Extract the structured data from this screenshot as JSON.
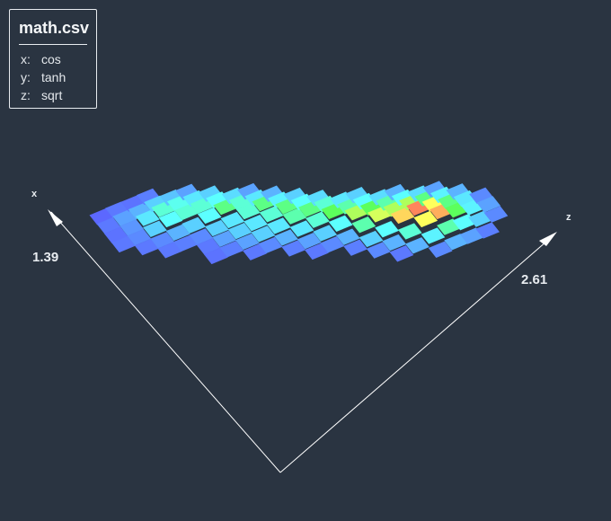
{
  "info": {
    "title": "math.csv",
    "rows": [
      {
        "key": "x:",
        "value": "cos"
      },
      {
        "key": "y:",
        "value": "tanh"
      },
      {
        "key": "z:",
        "value": "sqrt"
      }
    ]
  },
  "colors": {
    "background": "#2a3441",
    "axis": "#ffffff",
    "colormap": [
      "#5c5cff",
      "#5ad0ff",
      "#5cffff",
      "#5cff5c",
      "#ffff5c",
      "#ff5c5c"
    ]
  },
  "chart_data": {
    "type": "heatmap",
    "title": "math.csv",
    "axes": {
      "x": "cos",
      "y": "tanh",
      "z": "sqrt"
    },
    "axis_labels": {
      "x": "x",
      "z": "z"
    },
    "x_max_label": "1.39",
    "z_max_label": "2.61",
    "grid": false,
    "cells": [
      [
        0,
        0,
        0.02
      ],
      [
        0,
        1,
        0.05
      ],
      [
        0,
        2,
        0.04
      ],
      [
        0,
        3,
        0.05
      ],
      [
        1,
        0,
        0.05
      ],
      [
        1,
        1,
        0.12
      ],
      [
        1,
        2,
        0.1
      ],
      [
        1,
        3,
        0.08
      ],
      [
        1,
        4,
        0.05
      ],
      [
        2,
        0,
        0.04
      ],
      [
        2,
        1,
        0.15
      ],
      [
        2,
        2,
        0.3
      ],
      [
        2,
        3,
        0.2
      ],
      [
        2,
        4,
        0.08
      ],
      [
        2,
        5,
        0.05
      ],
      [
        3,
        0,
        0.06
      ],
      [
        3,
        1,
        0.2
      ],
      [
        3,
        2,
        0.45
      ],
      [
        3,
        3,
        0.4
      ],
      [
        3,
        4,
        0.15
      ],
      [
        3,
        5,
        0.06
      ],
      [
        4,
        1,
        0.18
      ],
      [
        4,
        2,
        0.42
      ],
      [
        4,
        3,
        0.45
      ],
      [
        4,
        4,
        0.2
      ],
      [
        4,
        5,
        0.08
      ],
      [
        4,
        6,
        0.05
      ],
      [
        4,
        7,
        0.04
      ],
      [
        5,
        1,
        0.12
      ],
      [
        5,
        2,
        0.3
      ],
      [
        5,
        3,
        0.45
      ],
      [
        5,
        4,
        0.4
      ],
      [
        5,
        5,
        0.2
      ],
      [
        5,
        6,
        0.12
      ],
      [
        5,
        7,
        0.06
      ],
      [
        6,
        2,
        0.2
      ],
      [
        6,
        3,
        0.4
      ],
      [
        6,
        4,
        0.55
      ],
      [
        6,
        5,
        0.3
      ],
      [
        6,
        6,
        0.2
      ],
      [
        6,
        7,
        0.12
      ],
      [
        6,
        8,
        0.05
      ],
      [
        7,
        3,
        0.25
      ],
      [
        7,
        4,
        0.45
      ],
      [
        7,
        5,
        0.45
      ],
      [
        7,
        6,
        0.3
      ],
      [
        7,
        7,
        0.2
      ],
      [
        7,
        8,
        0.08
      ],
      [
        8,
        3,
        0.12
      ],
      [
        8,
        4,
        0.3
      ],
      [
        8,
        5,
        0.55
      ],
      [
        8,
        6,
        0.45
      ],
      [
        8,
        7,
        0.3
      ],
      [
        8,
        8,
        0.15
      ],
      [
        8,
        9,
        0.06
      ],
      [
        9,
        4,
        0.15
      ],
      [
        9,
        5,
        0.35
      ],
      [
        9,
        6,
        0.55
      ],
      [
        9,
        7,
        0.5
      ],
      [
        9,
        8,
        0.3
      ],
      [
        9,
        9,
        0.12
      ],
      [
        9,
        10,
        0.05
      ],
      [
        10,
        5,
        0.2
      ],
      [
        10,
        6,
        0.4
      ],
      [
        10,
        7,
        0.55
      ],
      [
        10,
        8,
        0.45
      ],
      [
        10,
        9,
        0.2
      ],
      [
        10,
        10,
        0.08
      ],
      [
        11,
        6,
        0.25
      ],
      [
        11,
        7,
        0.45
      ],
      [
        11,
        8,
        0.6
      ],
      [
        11,
        9,
        0.4
      ],
      [
        11,
        10,
        0.15
      ],
      [
        11,
        11,
        0.06
      ],
      [
        12,
        7,
        0.3
      ],
      [
        12,
        8,
        0.5
      ],
      [
        12,
        9,
        0.7
      ],
      [
        12,
        10,
        0.5
      ],
      [
        12,
        11,
        0.2
      ],
      [
        12,
        12,
        0.08
      ],
      [
        13,
        7,
        0.2
      ],
      [
        13,
        8,
        0.4
      ],
      [
        13,
        9,
        0.6
      ],
      [
        13,
        10,
        0.75
      ],
      [
        13,
        11,
        0.4
      ],
      [
        13,
        12,
        0.15
      ],
      [
        13,
        13,
        0.05
      ],
      [
        14,
        8,
        0.25
      ],
      [
        14,
        9,
        0.5
      ],
      [
        14,
        10,
        0.7
      ],
      [
        14,
        11,
        0.85
      ],
      [
        14,
        12,
        0.45
      ],
      [
        14,
        13,
        0.15
      ],
      [
        15,
        8,
        0.15
      ],
      [
        15,
        9,
        0.4
      ],
      [
        15,
        10,
        0.7
      ],
      [
        15,
        11,
        0.95
      ],
      [
        15,
        12,
        0.8
      ],
      [
        15,
        13,
        0.35
      ],
      [
        15,
        14,
        0.08
      ],
      [
        16,
        9,
        0.25
      ],
      [
        16,
        10,
        0.55
      ],
      [
        16,
        11,
        0.8
      ],
      [
        16,
        12,
        0.9
      ],
      [
        16,
        13,
        0.5
      ],
      [
        16,
        14,
        0.15
      ],
      [
        17,
        9,
        0.12
      ],
      [
        17,
        10,
        0.35
      ],
      [
        17,
        11,
        0.55
      ],
      [
        17,
        12,
        0.6
      ],
      [
        17,
        13,
        0.4
      ],
      [
        17,
        14,
        0.12
      ],
      [
        18,
        10,
        0.15
      ],
      [
        18,
        11,
        0.3
      ],
      [
        18,
        12,
        0.35
      ],
      [
        18,
        13,
        0.2
      ],
      [
        18,
        14,
        0.06
      ],
      [
        19,
        11,
        0.08
      ],
      [
        19,
        12,
        0.12
      ],
      [
        19,
        13,
        0.08
      ]
    ]
  }
}
